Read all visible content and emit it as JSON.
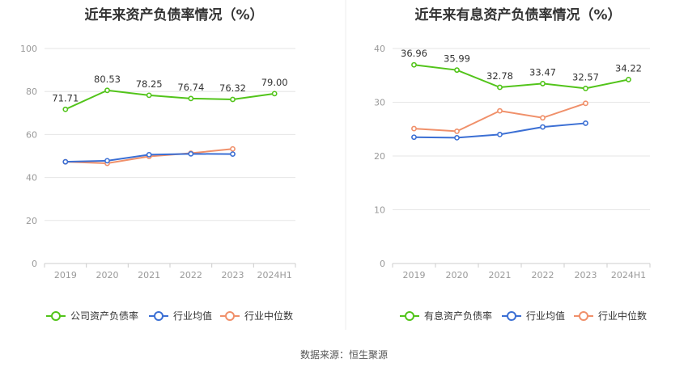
{
  "source": "数据来源：恒生聚源",
  "chart_data": [
    {
      "type": "line",
      "title": "近年来资产负债率情况（%）",
      "categories": [
        "2019",
        "2020",
        "2021",
        "2022",
        "2023",
        "2024H1"
      ],
      "ylim": [
        0,
        100
      ],
      "yticks": [
        0,
        20,
        40,
        60,
        80,
        100
      ],
      "grid": true,
      "legend": "bottom",
      "series": [
        {
          "name": "公司资产负债率",
          "color": "#52c41a",
          "values": [
            71.71,
            80.53,
            78.25,
            76.74,
            76.32,
            79.0
          ],
          "labels": [
            "71.71",
            "80.53",
            "78.25",
            "76.74",
            "76.32",
            "79.00"
          ]
        },
        {
          "name": "行业均值",
          "color": "#3b6fd4",
          "values": [
            47.3,
            47.8,
            50.6,
            51.0,
            50.9,
            null
          ]
        },
        {
          "name": "行业中位数",
          "color": "#f0906a",
          "values": [
            47.3,
            46.6,
            49.8,
            51.3,
            53.3,
            null
          ]
        }
      ]
    },
    {
      "type": "line",
      "title": "近年来有息资产负债率情况（%）",
      "categories": [
        "2019",
        "2020",
        "2021",
        "2022",
        "2023",
        "2024H1"
      ],
      "ylim": [
        0,
        40
      ],
      "yticks": [
        0,
        10,
        20,
        30,
        40
      ],
      "grid": true,
      "legend": "bottom",
      "series": [
        {
          "name": "有息资产负债率",
          "color": "#52c41a",
          "values": [
            36.96,
            35.99,
            32.78,
            33.47,
            32.57,
            34.22
          ],
          "labels": [
            "36.96",
            "35.99",
            "32.78",
            "33.47",
            "32.57",
            "34.22"
          ]
        },
        {
          "name": "行业均值",
          "color": "#3b6fd4",
          "values": [
            23.5,
            23.4,
            24.0,
            25.4,
            26.1,
            null
          ]
        },
        {
          "name": "行业中位数",
          "color": "#f0906a",
          "values": [
            25.1,
            24.6,
            28.4,
            27.1,
            29.8,
            null
          ]
        }
      ]
    }
  ]
}
